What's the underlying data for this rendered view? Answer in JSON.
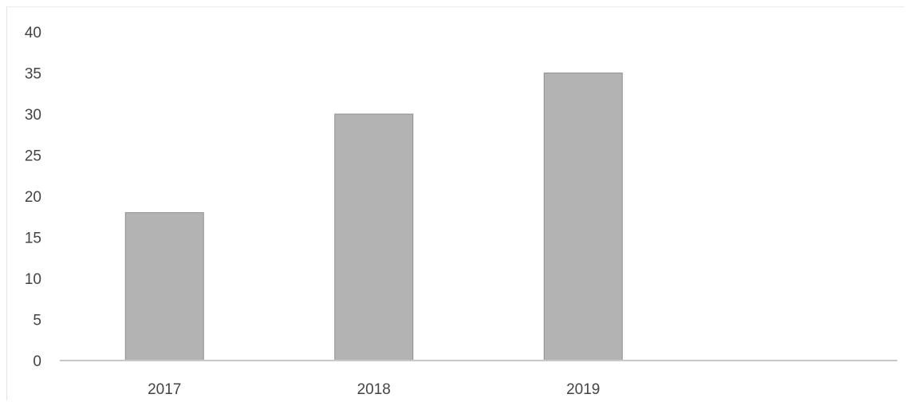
{
  "chart_data": {
    "type": "bar",
    "categories": [
      "2017",
      "2018",
      "2019",
      ""
    ],
    "values": [
      18,
      30,
      35,
      null
    ],
    "ylim": [
      0,
      40
    ],
    "yticks": [
      0,
      5,
      10,
      15,
      20,
      25,
      30,
      35,
      40
    ],
    "grid": false,
    "legend": "none",
    "colors": {
      "bar_fill": "#b3b3b3",
      "bar_stroke": "#8f8f8f",
      "axis": "#c8c8c8"
    }
  }
}
